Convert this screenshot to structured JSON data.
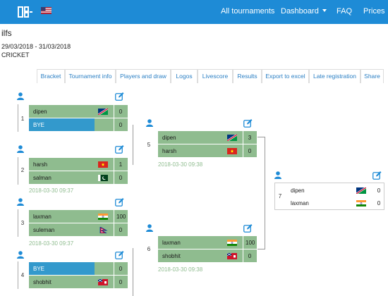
{
  "nav": {
    "links": [
      "All tournaments",
      "Dashboard",
      "FAQ",
      "Prices"
    ]
  },
  "page": {
    "title": "ilfs",
    "dates": "29/03/2018 - 31/03/2018",
    "sport": "CRICKET"
  },
  "tabs": [
    "Bracket",
    "Tournament info",
    "Players and draw",
    "Logos",
    "Livescore",
    "Results",
    "Export to excel",
    "Late registration",
    "Share"
  ],
  "matches": [
    {
      "num": "1",
      "p1": "dipen",
      "s1": "0",
      "p2": "BYE",
      "s2": "0",
      "time": ""
    },
    {
      "num": "2",
      "p1": "harsh",
      "s1": "1",
      "p2": "salman",
      "s2": "0",
      "time": "2018-03-30 09:37"
    },
    {
      "num": "3",
      "p1": "laxman",
      "s1": "100",
      "p2": "suleman",
      "s2": "0",
      "time": "2018-03-30 09:37"
    },
    {
      "num": "4",
      "p1": "BYE",
      "s1": "0",
      "p2": "shobhit",
      "s2": "0",
      "time": ""
    },
    {
      "num": "5",
      "p1": "dipen",
      "s1": "3",
      "p2": "harsh",
      "s2": "0",
      "time": "2018-03-30 09:38"
    },
    {
      "num": "6",
      "p1": "laxman",
      "s1": "100",
      "p2": "shobhit",
      "s2": "0",
      "time": "2018-03-30 09:38"
    },
    {
      "num": "7",
      "p1": "dipen",
      "s1": "0",
      "p2": "laxman",
      "s2": "0",
      "time": ""
    }
  ],
  "colors": {
    "nav": "#1e8bd6",
    "winner_row": "#8fbc8f",
    "bye_row": "#3399cc",
    "time_text": "#8fbc8f",
    "icon": "#1e8bd6"
  },
  "icons": {
    "logo": "brand-logo-icon",
    "language": "us-flag-icon",
    "player": "user-icon",
    "edit": "edit-icon"
  }
}
